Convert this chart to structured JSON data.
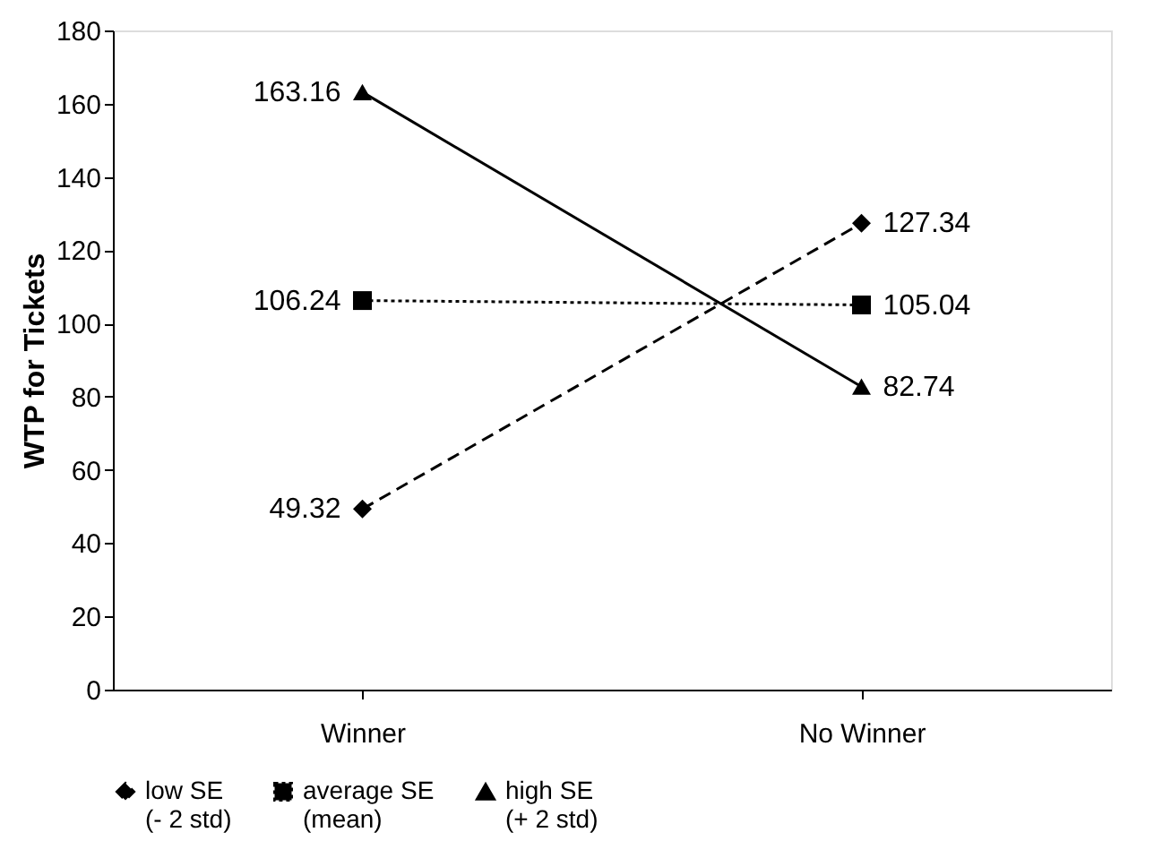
{
  "chart_data": {
    "type": "line",
    "ylabel": "WTP for Tickets",
    "categories": [
      "Winner",
      "No Winner"
    ],
    "series": [
      {
        "name": "low SE\n(- 2 std)",
        "color": "#000000",
        "values": [
          49.32,
          127.34
        ],
        "marker": "diamond",
        "line_style": "dashed"
      },
      {
        "name": "average SE\n(mean)",
        "color": "#000000",
        "values": [
          106.24,
          105.04
        ],
        "marker": "square",
        "line_style": "dotted"
      },
      {
        "name": "high SE\n(+ 2 std)",
        "color": "#000000",
        "values": [
          163.16,
          82.74
        ],
        "marker": "triangle",
        "line_style": "solid"
      }
    ],
    "ylim": [
      0,
      180
    ],
    "yticks": [
      0,
      20,
      40,
      60,
      80,
      100,
      120,
      140,
      160,
      180
    ],
    "grid": false,
    "legend": "bottom",
    "data_labels": true
  }
}
